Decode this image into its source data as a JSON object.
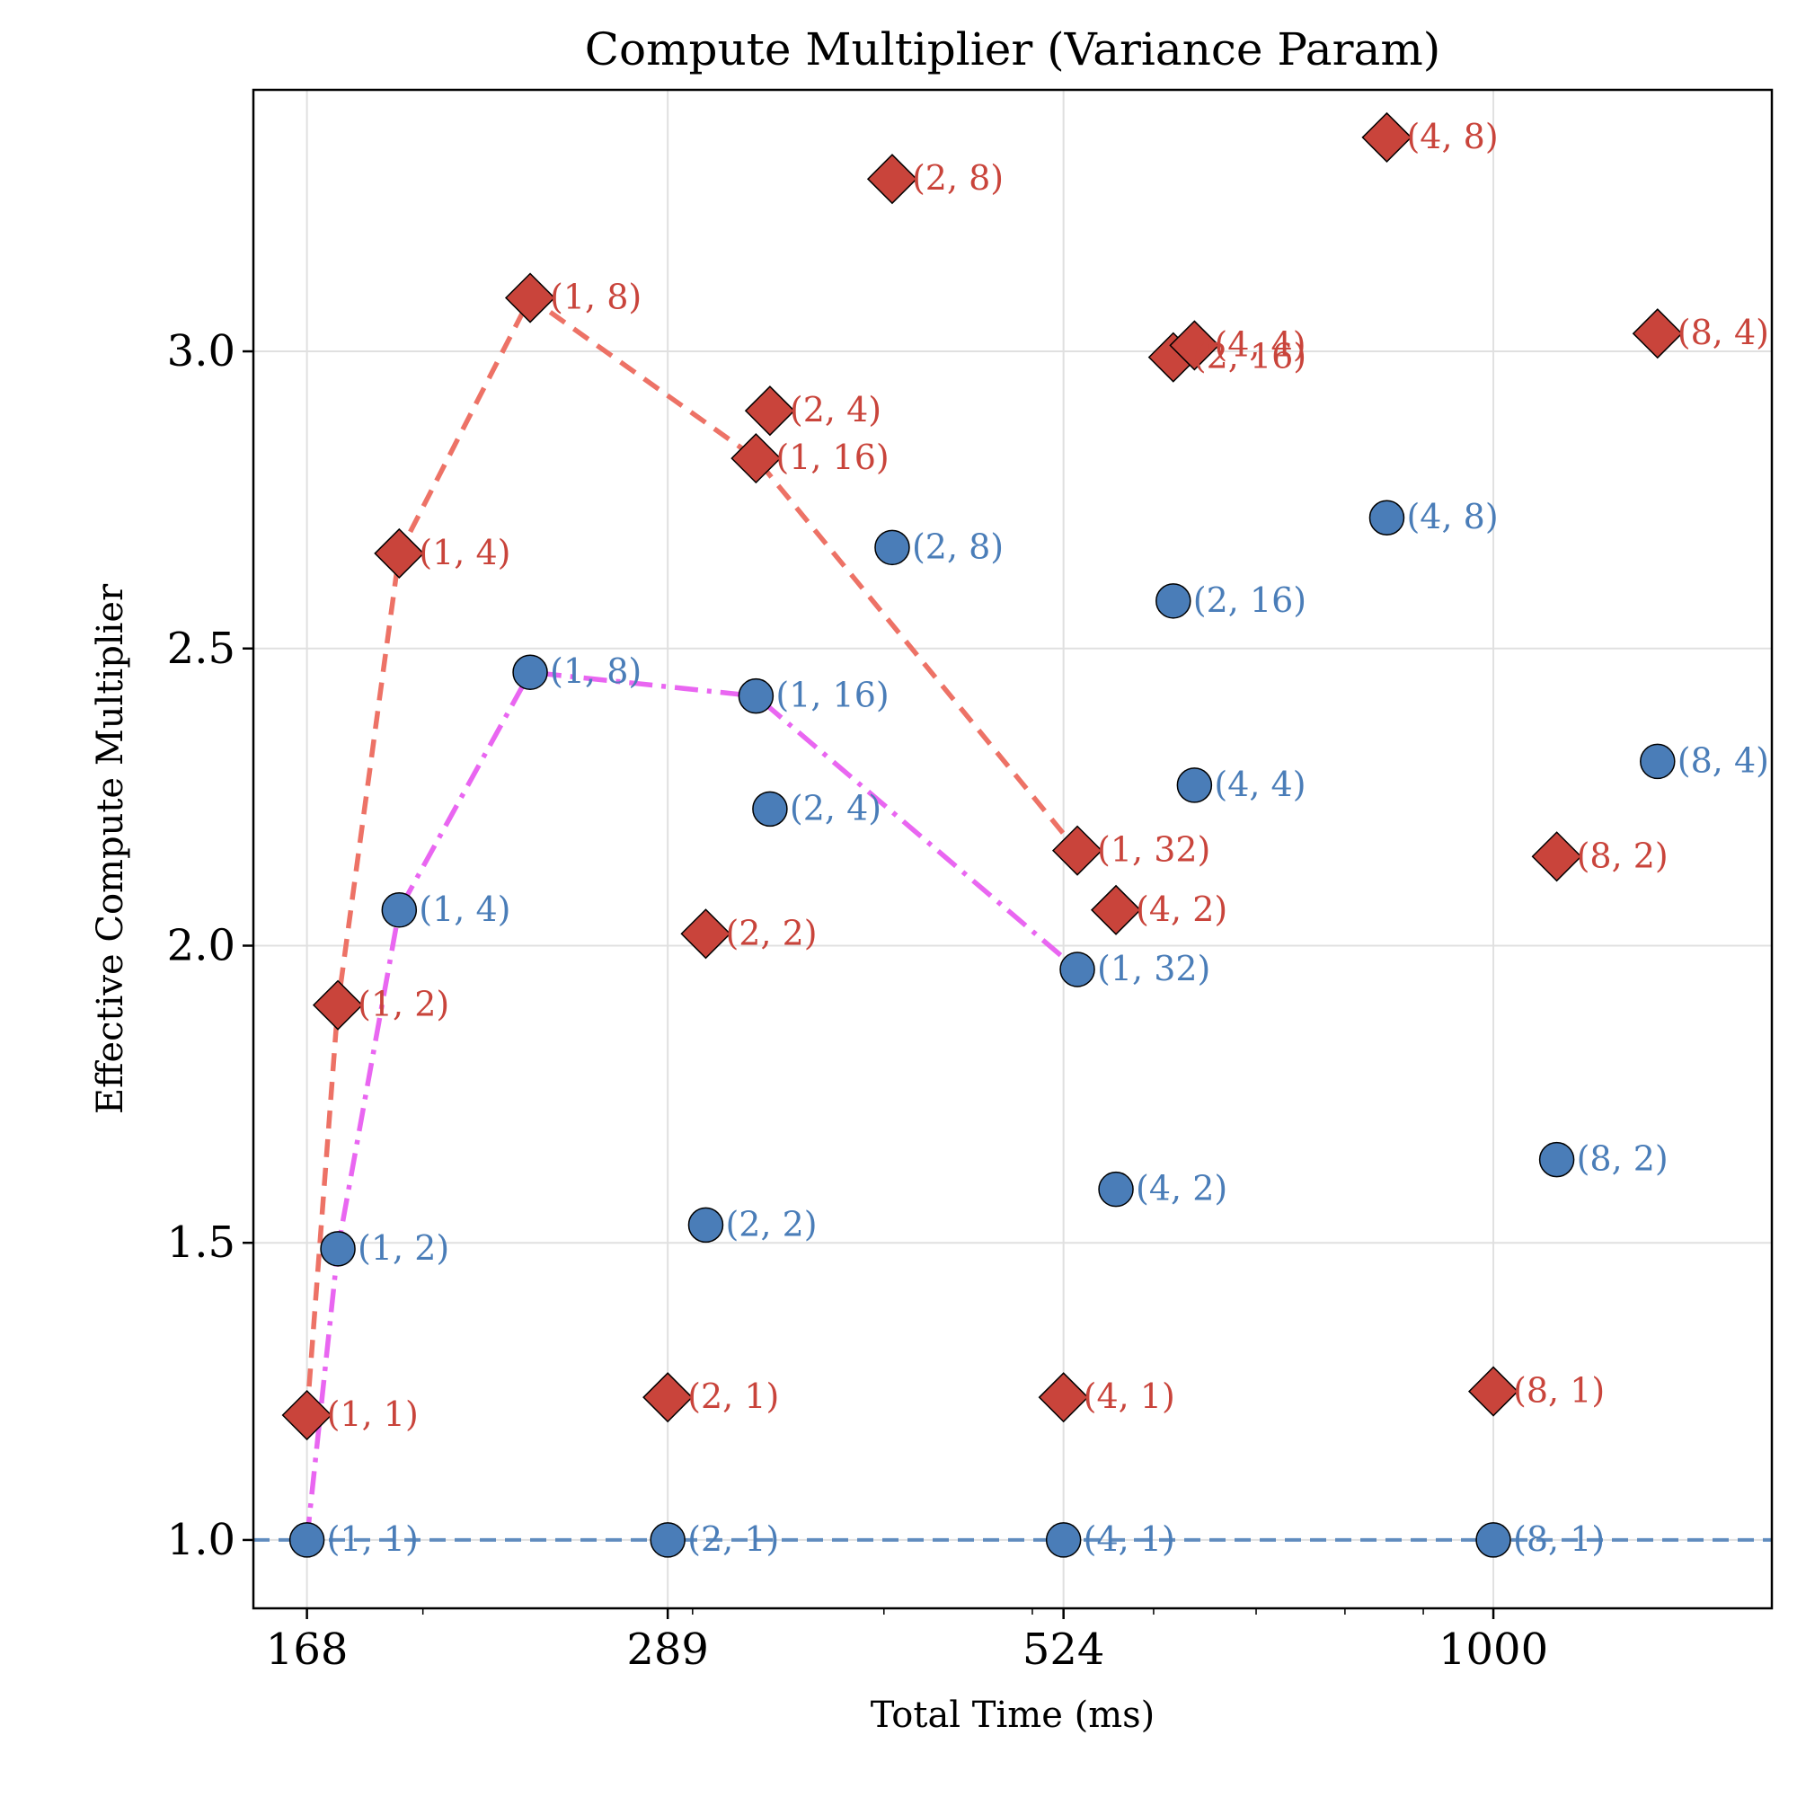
{
  "chart_data": {
    "type": "scatter",
    "title": "Compute Multiplier (Variance Param)",
    "xlabel": "Total Time (ms)",
    "ylabel": "Effective Compute Multiplier",
    "x_scale": "log",
    "xlim": [
      155,
      1520
    ],
    "ylim": [
      0.885,
      3.44
    ],
    "x_ticks": [
      168,
      289,
      524,
      1000
    ],
    "x_tick_labels": [
      "168",
      "289",
      "524",
      "1000"
    ],
    "y_ticks": [
      1.0,
      1.5,
      2.0,
      2.5,
      3.0
    ],
    "y_tick_labels": [
      "1.0",
      "1.5",
      "2.0",
      "2.5",
      "3.0"
    ],
    "grid": true,
    "colors": {
      "red_series": "#c9443b",
      "blue_series": "#4a7db8",
      "red_line": "#ec6a5e",
      "magenta_line": "#e85ef0",
      "baseline": "#4a7db8"
    },
    "reference_line": {
      "y": 1.0,
      "style": "dashed"
    },
    "series": [
      {
        "marker": "diamond",
        "color": "#c9443b",
        "points": [
          {
            "x": 168,
            "y": 1.21,
            "label": "(1, 1)"
          },
          {
            "x": 176,
            "y": 1.9,
            "label": "(1, 2)"
          },
          {
            "x": 193,
            "y": 2.66,
            "label": "(1, 4)"
          },
          {
            "x": 235,
            "y": 3.09,
            "label": "(1, 8)"
          },
          {
            "x": 330,
            "y": 2.82,
            "label": "(1, 16)"
          },
          {
            "x": 535,
            "y": 2.16,
            "label": "(1, 32)"
          },
          {
            "x": 289,
            "y": 1.24,
            "label": "(2, 1)"
          },
          {
            "x": 306,
            "y": 2.02,
            "label": "(2, 2)"
          },
          {
            "x": 337,
            "y": 2.9,
            "label": "(2, 4)"
          },
          {
            "x": 405,
            "y": 3.29,
            "label": "(2, 8)"
          },
          {
            "x": 618,
            "y": 2.99,
            "label": "(2, 16)"
          },
          {
            "x": 524,
            "y": 1.24,
            "label": "(4, 1)"
          },
          {
            "x": 567,
            "y": 2.06,
            "label": "(4, 2)"
          },
          {
            "x": 638,
            "y": 3.01,
            "label": "(4, 4)"
          },
          {
            "x": 852,
            "y": 3.36,
            "label": "(4, 8)"
          },
          {
            "x": 1000,
            "y": 1.25,
            "label": "(8, 1)"
          },
          {
            "x": 1100,
            "y": 2.15,
            "label": "(8, 2)"
          },
          {
            "x": 1280,
            "y": 3.03,
            "label": "(8, 4)"
          }
        ]
      },
      {
        "marker": "circle",
        "color": "#4a7db8",
        "points": [
          {
            "x": 168,
            "y": 1.0,
            "label": "(1, 1)"
          },
          {
            "x": 176,
            "y": 1.49,
            "label": "(1, 2)"
          },
          {
            "x": 193,
            "y": 2.06,
            "label": "(1, 4)"
          },
          {
            "x": 235,
            "y": 2.46,
            "label": "(1, 8)"
          },
          {
            "x": 330,
            "y": 2.42,
            "label": "(1, 16)"
          },
          {
            "x": 535,
            "y": 1.96,
            "label": "(1, 32)"
          },
          {
            "x": 289,
            "y": 1.0,
            "label": "(2, 1)"
          },
          {
            "x": 306,
            "y": 1.53,
            "label": "(2, 2)"
          },
          {
            "x": 337,
            "y": 2.23,
            "label": "(2, 4)"
          },
          {
            "x": 405,
            "y": 2.67,
            "label": "(2, 8)"
          },
          {
            "x": 618,
            "y": 2.58,
            "label": "(2, 16)"
          },
          {
            "x": 524,
            "y": 1.0,
            "label": "(4, 1)"
          },
          {
            "x": 567,
            "y": 1.59,
            "label": "(4, 2)"
          },
          {
            "x": 638,
            "y": 2.27,
            "label": "(4, 4)"
          },
          {
            "x": 852,
            "y": 2.72,
            "label": "(4, 8)"
          },
          {
            "x": 1000,
            "y": 1.0,
            "label": "(8, 1)"
          },
          {
            "x": 1100,
            "y": 1.64,
            "label": "(8, 2)"
          },
          {
            "x": 1280,
            "y": 2.31,
            "label": "(8, 4)"
          }
        ]
      }
    ],
    "lines": [
      {
        "style": "dashed",
        "color": "#ec6a5e",
        "x": [
          168,
          176,
          193,
          235,
          330,
          535
        ],
        "y": [
          1.21,
          1.9,
          2.66,
          3.09,
          2.82,
          2.16
        ]
      },
      {
        "style": "dashdot",
        "color": "#e85ef0",
        "x": [
          168,
          176,
          193,
          235,
          330,
          535
        ],
        "y": [
          1.0,
          1.49,
          2.06,
          2.46,
          2.42,
          1.96
        ]
      }
    ]
  }
}
